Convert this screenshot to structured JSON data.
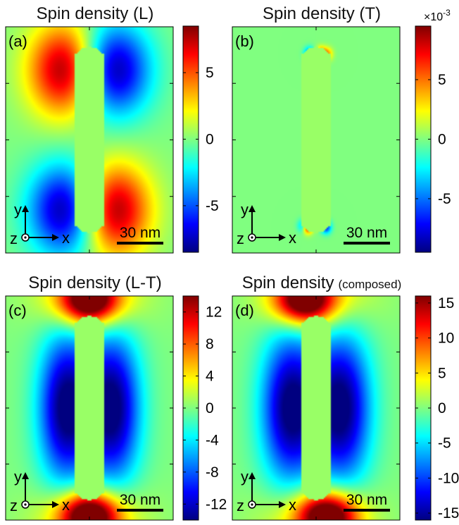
{
  "chart_data": [
    {
      "type": "heatmap",
      "panel": "(a)",
      "title": "Spin density (L)",
      "title_suffix": "",
      "colormap": "jet",
      "colorbar": {
        "min": -8.5,
        "max": 8.5,
        "ticks": [
          5,
          0,
          -5
        ],
        "tick_labels": [
          "5",
          "0",
          "-5"
        ],
        "multiplier": ""
      },
      "field": "longitudinal",
      "scale_bar": "30 nm",
      "axes_labels": {
        "y": "y",
        "x": "x",
        "z": "z"
      }
    },
    {
      "type": "heatmap",
      "panel": "(b)",
      "title": "Spin density (T)",
      "title_suffix": "",
      "colormap": "jet",
      "colorbar": {
        "min": -9.5,
        "max": 9.5,
        "ticks": [
          5,
          0,
          -5
        ],
        "tick_labels": [
          "5",
          "0",
          "-5"
        ],
        "multiplier": "×10-3"
      },
      "field": "transverse",
      "scale_bar": "30 nm",
      "axes_labels": {
        "y": "y",
        "x": "x",
        "z": "z"
      }
    },
    {
      "type": "heatmap",
      "panel": "(c)",
      "title": "Spin density (L-T)",
      "title_suffix": "",
      "colormap": "jet",
      "colorbar": {
        "min": -14,
        "max": 14,
        "ticks": [
          12,
          8,
          4,
          0,
          -4,
          -8,
          -12
        ],
        "tick_labels": [
          "12",
          "8",
          "4",
          "0",
          "-4",
          "-8",
          "-12"
        ],
        "multiplier": ""
      },
      "field": "difference",
      "scale_bar": "30 nm",
      "axes_labels": {
        "y": "y",
        "x": "x",
        "z": "z"
      }
    },
    {
      "type": "heatmap",
      "panel": "(d)",
      "title": "Spin density",
      "title_suffix": "(composed)",
      "colormap": "jet",
      "colorbar": {
        "min": -16,
        "max": 16,
        "ticks": [
          15,
          10,
          5,
          0,
          -5,
          -10,
          -15
        ],
        "tick_labels": [
          "15",
          "10",
          "5",
          "0",
          "-5",
          "-10",
          "-15"
        ],
        "multiplier": ""
      },
      "field": "composed",
      "scale_bar": "30 nm",
      "axes_labels": {
        "y": "y",
        "x": "x",
        "z": "z"
      }
    }
  ]
}
